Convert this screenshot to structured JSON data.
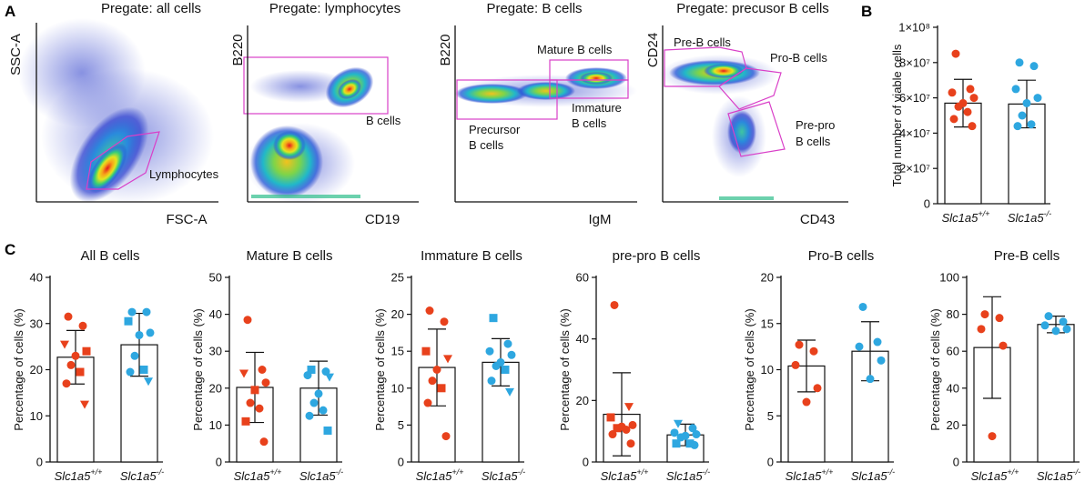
{
  "panels": {
    "a": "A",
    "b": "B",
    "c": "C"
  },
  "colors": {
    "wt": "#e8411c",
    "ko": "#2ea7e0",
    "gate": "#d93fc8",
    "axis": "#111111"
  },
  "gating": {
    "plots": [
      {
        "title": "Pregate: all cells",
        "xlabel": "FSC-A",
        "ylabel": "SSC-A",
        "gates": [
          "Lymphocytes"
        ]
      },
      {
        "title": "Pregate: lymphocytes",
        "xlabel": "CD19",
        "ylabel": "B220",
        "gates": [
          "B cells"
        ]
      },
      {
        "title": "Pregate: B cells",
        "xlabel": "IgM",
        "ylabel": "B220",
        "gates": [
          "Mature B cells",
          "Immature",
          "B cells",
          "Precursor",
          "B cells"
        ]
      },
      {
        "title": "Pregate: precusor B cells",
        "xlabel": "CD43",
        "ylabel": "CD24",
        "gates": [
          "Pre-B cells",
          "Pro-B cells",
          "Pre-pro",
          "B cells"
        ]
      }
    ]
  },
  "chart_data": [
    {
      "type": "bar",
      "panel": "B",
      "title": "",
      "ylabel": "Total number of viable cells",
      "ylim": [
        0,
        100000000
      ],
      "ticks": [
        "0",
        "2×10⁷",
        "4×10⁷",
        "6×10⁷",
        "8×10⁷",
        "1×10⁸"
      ],
      "tick_values": [
        0,
        20000000,
        40000000,
        60000000,
        80000000,
        100000000
      ],
      "categories": [
        "Slc1a5",
        "Slc1a5"
      ],
      "genotypes": [
        "+/+",
        "-/-"
      ],
      "series": [
        {
          "name": "Slc1a5+/+",
          "mean": 57000000,
          "sd": 13500000,
          "points": [
            85000000,
            65000000,
            63000000,
            60000000,
            57000000,
            55000000,
            52000000,
            48000000,
            44000000
          ],
          "marker": "circle"
        },
        {
          "name": "Slc1a5-/-",
          "mean": 56500000,
          "sd": 13500000,
          "points": [
            80000000,
            78000000,
            65000000,
            60000000,
            57000000,
            50000000,
            45000000,
            44000000
          ],
          "marker": "circle"
        }
      ]
    },
    {
      "type": "bar",
      "title": "All B cells",
      "ylabel": "Percentage of cells (%)",
      "ylim": [
        0,
        40
      ],
      "ticks": [
        "0",
        "10",
        "20",
        "30",
        "40"
      ],
      "tick_values": [
        0,
        10,
        20,
        30,
        40
      ],
      "categories": [
        "Slc1a5",
        "Slc1a5"
      ],
      "genotypes": [
        "+/+",
        "-/-"
      ],
      "series": [
        {
          "name": "Slc1a5+/+",
          "mean": 22.7,
          "sd": 5.8,
          "points": [
            31.5,
            29.5,
            25.5,
            24.0,
            23.0,
            21.0,
            19.5,
            17.0,
            12.5
          ],
          "markers": [
            "circle",
            "circle",
            "triangle",
            "square",
            "circle",
            "circle",
            "square",
            "circle",
            "triangle"
          ]
        },
        {
          "name": "Slc1a5-/-",
          "mean": 25.4,
          "sd": 6.8,
          "points": [
            32.5,
            32.5,
            30.5,
            28.0,
            27.5,
            23.0,
            20.0,
            19.5,
            17.5
          ],
          "markers": [
            "circle",
            "circle",
            "square",
            "circle",
            "circle",
            "circle",
            "square",
            "circle",
            "triangle"
          ]
        }
      ]
    },
    {
      "type": "bar",
      "title": "Mature B cells",
      "ylabel": "Percentage of cells (%)",
      "ylim": [
        0,
        50
      ],
      "ticks": [
        "0",
        "10",
        "20",
        "30",
        "40",
        "50"
      ],
      "tick_values": [
        0,
        10,
        20,
        30,
        40,
        50
      ],
      "categories": [
        "Slc1a5",
        "Slc1a5"
      ],
      "genotypes": [
        "+/+",
        "-/-"
      ],
      "series": [
        {
          "name": "Slc1a5+/+",
          "mean": 20.2,
          "sd": 9.5,
          "points": [
            38.5,
            25.0,
            24.0,
            21.5,
            19.5,
            16.0,
            14.5,
            11.0,
            5.5
          ],
          "markers": [
            "circle",
            "circle",
            "triangle",
            "circle",
            "square",
            "circle",
            "circle",
            "square",
            "circle"
          ]
        },
        {
          "name": "Slc1a5-/-",
          "mean": 20.0,
          "sd": 7.3,
          "points": [
            25.0,
            24.5,
            23.5,
            23.0,
            18.5,
            16.0,
            14.0,
            12.5,
            8.5
          ],
          "markers": [
            "square",
            "circle",
            "circle",
            "triangle",
            "circle",
            "circle",
            "circle",
            "circle",
            "square"
          ]
        }
      ]
    },
    {
      "type": "bar",
      "title": "Immature B cells",
      "ylabel": "Percentage of cells (%)",
      "ylim": [
        0,
        25
      ],
      "ticks": [
        "0",
        "5",
        "10",
        "15",
        "20",
        "25"
      ],
      "tick_values": [
        0,
        5,
        10,
        15,
        20,
        25
      ],
      "categories": [
        "Slc1a5",
        "Slc1a5"
      ],
      "genotypes": [
        "+/+",
        "-/-"
      ],
      "series": [
        {
          "name": "Slc1a5+/+",
          "mean": 12.8,
          "sd": 5.2,
          "points": [
            20.5,
            19.0,
            15.0,
            14.0,
            12.5,
            11.0,
            10.0,
            8.0,
            3.5
          ],
          "markers": [
            "circle",
            "circle",
            "square",
            "triangle",
            "circle",
            "circle",
            "square",
            "circle",
            "circle"
          ]
        },
        {
          "name": "Slc1a5-/-",
          "mean": 13.5,
          "sd": 3.2,
          "points": [
            19.5,
            16.0,
            15.0,
            14.5,
            13.5,
            13.0,
            12.5,
            11.0,
            9.5
          ],
          "markers": [
            "square",
            "circle",
            "circle",
            "circle",
            "circle",
            "circle",
            "square",
            "circle",
            "triangle"
          ]
        }
      ]
    },
    {
      "type": "bar",
      "title": "pre-pro B cells",
      "ylabel": "Percentage of cells (%)",
      "ylim": [
        0,
        60
      ],
      "ticks": [
        "0",
        "20",
        "40",
        "60"
      ],
      "tick_values": [
        0,
        20,
        40,
        60
      ],
      "categories": [
        "Slc1a5",
        "Slc1a5"
      ],
      "genotypes": [
        "+/+",
        "-/-"
      ],
      "series": [
        {
          "name": "Slc1a5+/+",
          "mean": 15.5,
          "sd": 13.5,
          "points": [
            51.0,
            18.0,
            14.5,
            12.0,
            11.5,
            11.0,
            10.5,
            9.0,
            6.0
          ],
          "markers": [
            "circle",
            "triangle",
            "square",
            "circle",
            "circle",
            "square",
            "circle",
            "circle",
            "circle"
          ]
        },
        {
          "name": "Slc1a5-/-",
          "mean": 8.8,
          "sd": 3.5,
          "points": [
            12.5,
            11.0,
            9.5,
            9.0,
            8.5,
            8.0,
            6.0,
            6.0,
            5.5
          ],
          "markers": [
            "triangle",
            "circle",
            "circle",
            "circle",
            "circle",
            "circle",
            "square",
            "square",
            "circle"
          ]
        }
      ]
    },
    {
      "type": "bar",
      "title": "Pro-B cells",
      "ylabel": "Percentage of cells (%)",
      "ylim": [
        0,
        20
      ],
      "ticks": [
        "0",
        "5",
        "10",
        "15",
        "20"
      ],
      "tick_values": [
        0,
        5,
        10,
        15,
        20
      ],
      "categories": [
        "Slc1a5",
        "Slc1a5"
      ],
      "genotypes": [
        "+/+",
        "-/-"
      ],
      "series": [
        {
          "name": "Slc1a5+/+",
          "mean": 10.4,
          "sd": 2.8,
          "points": [
            12.7,
            12.0,
            10.5,
            8.0,
            6.5
          ],
          "markers": [
            "circle",
            "circle",
            "circle",
            "circle",
            "circle"
          ]
        },
        {
          "name": "Slc1a5-/-",
          "mean": 12.0,
          "sd": 3.2,
          "points": [
            16.8,
            13.0,
            12.5,
            11.0,
            9.0
          ],
          "markers": [
            "circle",
            "circle",
            "circle",
            "circle",
            "circle"
          ]
        }
      ]
    },
    {
      "type": "bar",
      "title": "Pre-B cells",
      "ylabel": "Percentage of cells (%)",
      "ylim": [
        0,
        100
      ],
      "ticks": [
        "0",
        "20",
        "40",
        "60",
        "80",
        "100"
      ],
      "tick_values": [
        0,
        20,
        40,
        60,
        80,
        100
      ],
      "categories": [
        "Slc1a5",
        "Slc1a5"
      ],
      "genotypes": [
        "+/+",
        "-/-"
      ],
      "series": [
        {
          "name": "Slc1a5+/+",
          "mean": 62.0,
          "sd": 27.5,
          "points": [
            80.0,
            78.0,
            72.0,
            63.0,
            14.0
          ],
          "markers": [
            "circle",
            "circle",
            "circle",
            "circle",
            "circle"
          ]
        },
        {
          "name": "Slc1a5-/-",
          "mean": 74.5,
          "sd": 4.5,
          "points": [
            79.0,
            76.0,
            74.0,
            72.0,
            71.0
          ],
          "markers": [
            "circle",
            "circle",
            "circle",
            "circle",
            "circle"
          ]
        }
      ]
    }
  ]
}
